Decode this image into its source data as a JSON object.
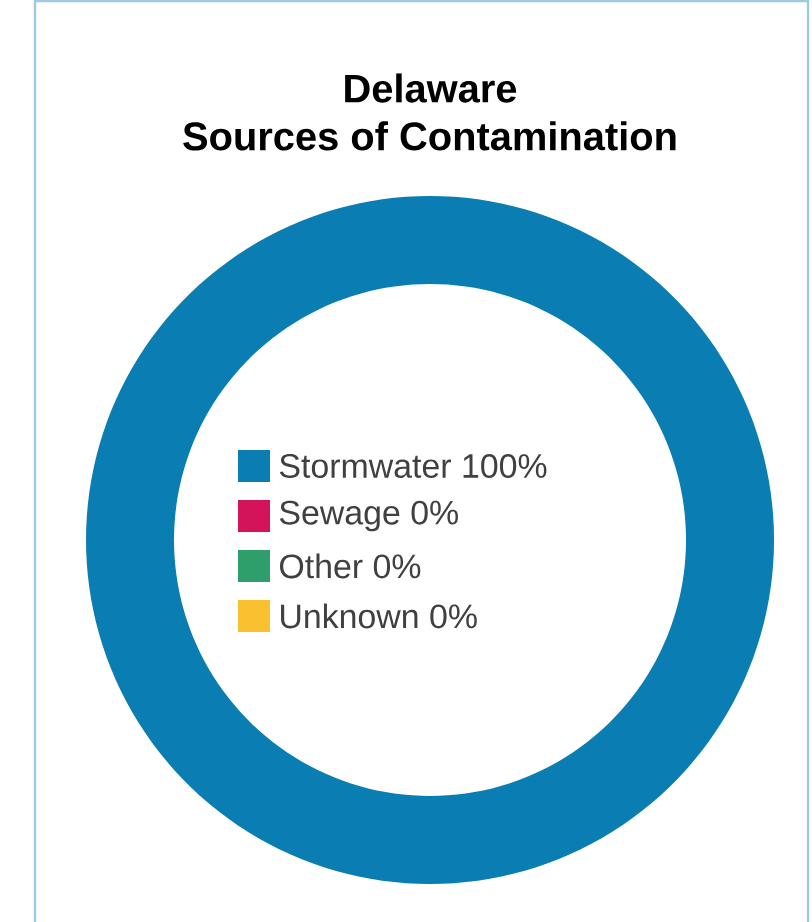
{
  "chart_data": {
    "type": "donut",
    "title": "Delaware\nSources of Contamination",
    "categories": [
      "Stormwater",
      "Sewage",
      "Other",
      "Unknown"
    ],
    "values": [
      100,
      0,
      0,
      0
    ],
    "value_labels": [
      "100%",
      "0%",
      "0%",
      "0%"
    ],
    "colors": [
      "#0a7db2",
      "#d4145a",
      "#2e9e6a",
      "#f9c030"
    ],
    "legend": "center"
  }
}
